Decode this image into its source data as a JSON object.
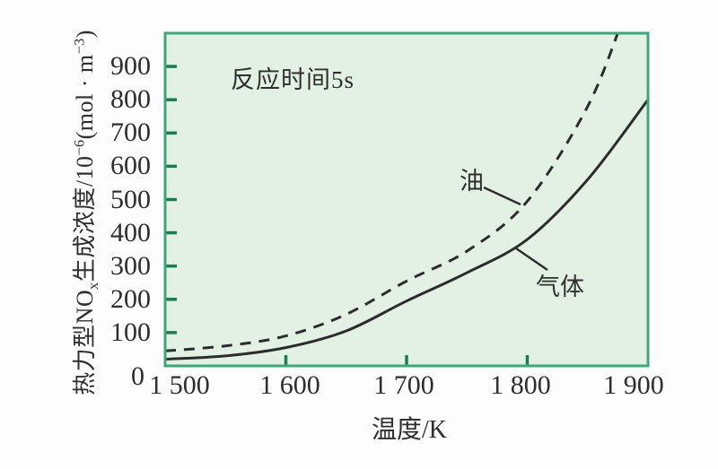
{
  "colors": {
    "page_bg": "#fcfdfc",
    "plot_bg": "#e3f1e5",
    "plot_border": "#3fa678",
    "tick_mark": "#1e7a52",
    "curve": "#2c2c2c",
    "text": "#2e2e2e"
  },
  "chart_data": {
    "type": "line",
    "title": "",
    "annotation": "反应时间5s",
    "xlabel": "温度/K",
    "ylabel": "热力型NOx生成浓度/10⁻⁶(mol·m⁻³)",
    "ylabel_segments": [
      {
        "t": "热力型NO"
      },
      {
        "t": "x",
        "s": "sub"
      },
      {
        "t": "生成浓度/10"
      },
      {
        "t": "−6",
        "s": "sup"
      },
      {
        "t": "(mol · m"
      },
      {
        "t": "−3",
        "s": "sup"
      },
      {
        "t": ")"
      }
    ],
    "xlim": [
      1500,
      1900
    ],
    "ylim": [
      0,
      1000
    ],
    "grid": false,
    "x_ticks": [
      {
        "value": 1500,
        "label": "1 500"
      },
      {
        "value": 1600,
        "label": "1 600"
      },
      {
        "value": 1700,
        "label": "1 700"
      },
      {
        "value": 1800,
        "label": "1 800"
      },
      {
        "value": 1900,
        "label": "1 900"
      }
    ],
    "y_ticks": [
      {
        "value": 0,
        "label": "0"
      },
      {
        "value": 100,
        "label": "100"
      },
      {
        "value": 200,
        "label": "200"
      },
      {
        "value": 300,
        "label": "300"
      },
      {
        "value": 400,
        "label": "400"
      },
      {
        "value": 500,
        "label": "500"
      },
      {
        "value": 600,
        "label": "600"
      },
      {
        "value": 700,
        "label": "700"
      },
      {
        "value": 800,
        "label": "800"
      },
      {
        "value": 900,
        "label": "900"
      }
    ],
    "series": [
      {
        "name": "油",
        "line_style": "dashed",
        "x": [
          1500,
          1550,
          1600,
          1650,
          1700,
          1750,
          1800,
          1850,
          1880
        ],
        "y": [
          45,
          60,
          90,
          155,
          255,
          345,
          495,
          780,
          1050
        ]
      },
      {
        "name": "气体",
        "line_style": "solid",
        "x": [
          1500,
          1550,
          1600,
          1650,
          1700,
          1750,
          1800,
          1850,
          1900
        ],
        "y": [
          20,
          30,
          55,
          105,
          195,
          280,
          380,
          560,
          800
        ]
      }
    ]
  }
}
